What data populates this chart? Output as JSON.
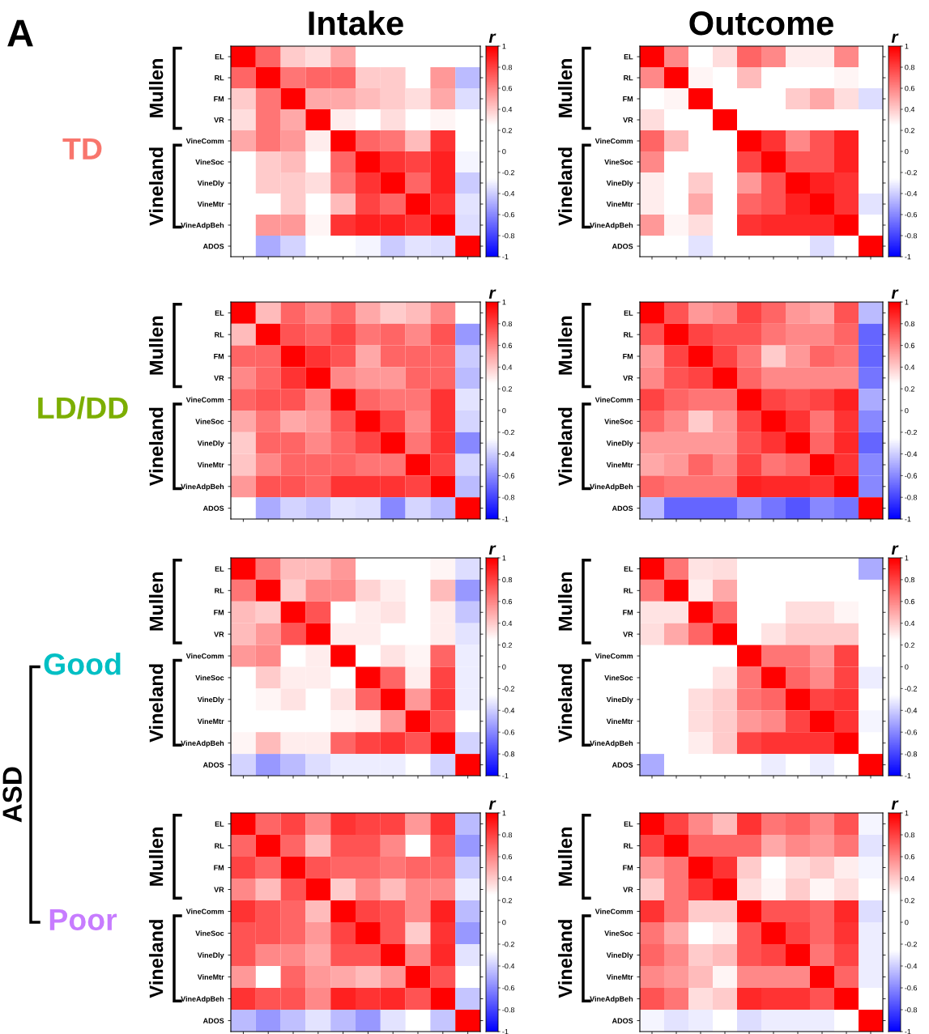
{
  "chart_data": [
    {
      "type": "heatmap",
      "title": "Intake",
      "categories": [
        null,
        null,
        null,
        null,
        null,
        null,
        null,
        null,
        null,
        null
      ],
      "y_categories": [
        "EL",
        "RL",
        "FM",
        "VR",
        "VineComm",
        "VineSoc",
        "VineDly",
        "VineMtr",
        "VineAdpBeh",
        "ADOS"
      ],
      "cells": [
        [
          1,
          0.7,
          0.4,
          0.35,
          0.5,
          null,
          null,
          null,
          null,
          null
        ],
        [
          0.7,
          1,
          0.65,
          0.7,
          0.7,
          0.4,
          0.4,
          null,
          0.55,
          -0.45
        ],
        [
          0.4,
          0.65,
          1,
          0.5,
          0.5,
          0.45,
          0.4,
          0.35,
          0.5,
          -0.35
        ],
        [
          0.35,
          0.65,
          0.5,
          1,
          0.3,
          null,
          0.35,
          null,
          0.28,
          null
        ],
        [
          0.5,
          0.65,
          0.55,
          0.3,
          1,
          0.7,
          0.65,
          0.45,
          0.85,
          null
        ],
        [
          null,
          0.4,
          0.45,
          null,
          0.7,
          1,
          0.85,
          0.8,
          0.9,
          -0.28
        ],
        [
          null,
          0.4,
          0.4,
          0.35,
          0.65,
          0.85,
          1,
          0.7,
          0.9,
          -0.4
        ],
        [
          null,
          null,
          0.4,
          null,
          0.45,
          0.8,
          0.7,
          1,
          0.85,
          -0.33
        ],
        [
          null,
          0.55,
          0.55,
          0.28,
          0.85,
          0.9,
          0.9,
          0.85,
          1,
          -0.35
        ],
        [
          null,
          -0.5,
          -0.38,
          null,
          null,
          -0.28,
          -0.4,
          -0.33,
          -0.35,
          1
        ]
      ],
      "clim": [
        -1,
        1
      ],
      "cticks": [
        1,
        0.8,
        0.6,
        0.4,
        0.2,
        0,
        -0.2,
        -0.4,
        -0.6,
        -0.8,
        -1
      ],
      "clabel": "r",
      "tick_labels": "y",
      "annotations": [
        "Mullen",
        "Vineland",
        "TD",
        "A"
      ]
    },
    {
      "type": "heatmap",
      "title": "Outcome",
      "categories": [
        null,
        null,
        null,
        null,
        null,
        null,
        null,
        null,
        null,
        null
      ],
      "y_categories": [
        "EL",
        "RL",
        "FM",
        "VR",
        "VineComm",
        "VineSoc",
        "VineDly",
        "VineMtr",
        "VineAdpBeh",
        "ADOS"
      ],
      "cells": [
        [
          1,
          0.6,
          null,
          0.35,
          0.7,
          0.6,
          0.3,
          0.3,
          0.6,
          null
        ],
        [
          0.6,
          1,
          0.28,
          null,
          0.45,
          null,
          null,
          null,
          0.28,
          null
        ],
        [
          null,
          0.28,
          1,
          null,
          null,
          null,
          0.4,
          0.5,
          0.35,
          -0.35
        ],
        [
          0.35,
          null,
          null,
          1,
          null,
          null,
          null,
          null,
          null,
          null
        ],
        [
          0.7,
          0.45,
          null,
          null,
          1,
          0.85,
          0.6,
          0.75,
          0.9,
          null
        ],
        [
          0.6,
          null,
          null,
          null,
          0.8,
          1,
          0.75,
          0.75,
          0.9,
          null
        ],
        [
          0.3,
          null,
          0.4,
          null,
          0.55,
          0.75,
          1,
          0.9,
          0.85,
          null
        ],
        [
          0.3,
          null,
          0.5,
          null,
          0.7,
          0.75,
          0.9,
          1,
          0.85,
          -0.33
        ],
        [
          0.55,
          0.28,
          0.35,
          null,
          0.85,
          0.88,
          0.88,
          0.88,
          1,
          null
        ],
        [
          null,
          null,
          -0.33,
          null,
          null,
          null,
          null,
          -0.35,
          null,
          1
        ]
      ],
      "clim": [
        -1,
        1
      ],
      "cticks": [
        1,
        0.8,
        0.6,
        0.4,
        0.2,
        0,
        -0.2,
        -0.4,
        -0.6,
        -0.8,
        -1
      ],
      "clabel": "r",
      "tick_labels": "y",
      "annotations": [
        "Mullen",
        "Vineland"
      ]
    },
    {
      "type": "heatmap",
      "categories": [
        null,
        null,
        null,
        null,
        null,
        null,
        null,
        null,
        null,
        null
      ],
      "y_categories": [
        "EL",
        "RL",
        "FM",
        "VR",
        "VineComm",
        "VineSoc",
        "VineDly",
        "VineMtr",
        "VineAdpBeh",
        "ADOS"
      ],
      "cells": [
        [
          1,
          0.45,
          0.7,
          0.6,
          0.7,
          0.5,
          0.4,
          0.45,
          0.6,
          null
        ],
        [
          0.45,
          1,
          0.75,
          0.7,
          0.8,
          0.65,
          0.7,
          0.6,
          0.75,
          -0.55
        ],
        [
          0.7,
          0.7,
          1,
          0.85,
          0.75,
          0.5,
          0.7,
          0.7,
          0.7,
          -0.4
        ],
        [
          0.6,
          0.7,
          0.85,
          1,
          0.6,
          0.55,
          0.55,
          0.7,
          0.7,
          -0.45
        ],
        [
          0.7,
          0.75,
          0.75,
          0.6,
          1,
          0.7,
          0.65,
          0.65,
          0.85,
          -0.33
        ],
        [
          0.5,
          0.65,
          0.5,
          0.55,
          0.75,
          1,
          0.8,
          0.6,
          0.85,
          -0.37
        ],
        [
          0.4,
          0.7,
          0.7,
          0.6,
          0.7,
          0.8,
          1,
          0.65,
          0.85,
          -0.6
        ],
        [
          0.42,
          0.6,
          0.7,
          0.7,
          0.7,
          0.65,
          0.65,
          1,
          0.8,
          -0.37
        ],
        [
          0.55,
          0.75,
          0.75,
          0.7,
          0.85,
          0.85,
          0.85,
          0.8,
          1,
          -0.45
        ],
        [
          null,
          -0.5,
          -0.38,
          -0.42,
          -0.33,
          -0.35,
          -0.6,
          -0.37,
          -0.45,
          1
        ]
      ],
      "clim": [
        -1,
        1
      ],
      "cticks": [
        1,
        0.8,
        0.6,
        0.4,
        0.2,
        0,
        -0.2,
        -0.4,
        -0.6,
        -0.8,
        -1
      ],
      "clabel": "r",
      "tick_labels": "y",
      "annotations": [
        "Mullen",
        "Vineland",
        "LD/DD"
      ]
    },
    {
      "type": "heatmap",
      "categories": [
        null,
        null,
        null,
        null,
        null,
        null,
        null,
        null,
        null,
        null
      ],
      "y_categories": [
        "EL",
        "RL",
        "FM",
        "VR",
        "VineComm",
        "VineSoc",
        "VineDly",
        "VineMtr",
        "VineAdpBeh",
        "ADOS"
      ],
      "cells": [
        [
          1,
          0.75,
          0.55,
          0.6,
          0.8,
          0.7,
          0.55,
          0.5,
          0.75,
          -0.45
        ],
        [
          0.75,
          1,
          0.8,
          0.75,
          0.75,
          0.65,
          0.6,
          0.6,
          0.7,
          -0.7
        ],
        [
          0.55,
          0.8,
          1,
          0.8,
          0.65,
          0.4,
          0.55,
          0.7,
          0.65,
          -0.7
        ],
        [
          0.6,
          0.75,
          0.8,
          1,
          0.7,
          0.6,
          0.6,
          0.6,
          0.6,
          -0.65
        ],
        [
          0.8,
          0.7,
          0.65,
          0.65,
          1,
          0.8,
          0.75,
          0.8,
          0.9,
          -0.5
        ],
        [
          0.7,
          0.6,
          0.4,
          0.55,
          0.8,
          1,
          0.85,
          0.65,
          0.85,
          -0.6
        ],
        [
          0.55,
          0.55,
          0.55,
          0.55,
          0.75,
          0.85,
          1,
          0.7,
          0.88,
          -0.7
        ],
        [
          0.5,
          0.55,
          0.7,
          0.6,
          0.8,
          0.65,
          0.7,
          1,
          0.85,
          -0.6
        ],
        [
          0.7,
          0.65,
          0.65,
          0.65,
          0.9,
          0.88,
          0.88,
          0.85,
          1,
          -0.6
        ],
        [
          -0.45,
          -0.7,
          -0.7,
          -0.7,
          -0.55,
          -0.65,
          -0.75,
          -0.6,
          -0.65,
          1
        ]
      ],
      "clim": [
        -1,
        1
      ],
      "cticks": [
        1,
        0.8,
        0.6,
        0.4,
        0.2,
        0,
        -0.2,
        -0.4,
        -0.6,
        -0.8,
        -1
      ],
      "clabel": "r",
      "tick_labels": "y",
      "annotations": [
        "Mullen",
        "Vineland"
      ]
    },
    {
      "type": "heatmap",
      "categories": [
        null,
        null,
        null,
        null,
        null,
        null,
        null,
        null,
        null,
        null
      ],
      "y_categories": [
        "EL",
        "RL",
        "FM",
        "VR",
        "VineComm",
        "VineSoc",
        "VineDly",
        "VineMtr",
        "VineAdpBeh",
        "ADOS"
      ],
      "cells": [
        [
          1,
          0.65,
          0.45,
          0.45,
          0.55,
          null,
          null,
          null,
          0.28,
          -0.35
        ],
        [
          0.65,
          1,
          0.4,
          0.6,
          0.6,
          0.38,
          0.3,
          null,
          0.45,
          -0.55
        ],
        [
          0.45,
          0.4,
          1,
          0.75,
          null,
          0.3,
          0.33,
          null,
          0.3,
          -0.42
        ],
        [
          0.45,
          0.55,
          0.75,
          1,
          0.3,
          0.3,
          null,
          null,
          0.3,
          -0.33
        ],
        [
          0.55,
          0.6,
          null,
          0.3,
          1,
          null,
          0.33,
          0.28,
          0.7,
          -0.3
        ],
        [
          null,
          0.4,
          0.3,
          0.3,
          null,
          1,
          0.7,
          0.3,
          0.8,
          -0.3
        ],
        [
          null,
          0.28,
          0.33,
          null,
          0.33,
          0.7,
          1,
          0.55,
          0.85,
          -0.3
        ],
        [
          null,
          null,
          null,
          null,
          0.28,
          0.3,
          0.55,
          1,
          0.75,
          null
        ],
        [
          0.28,
          0.45,
          0.3,
          0.3,
          0.7,
          0.8,
          0.85,
          0.75,
          1,
          -0.38
        ],
        [
          -0.38,
          -0.55,
          -0.45,
          -0.35,
          -0.3,
          -0.3,
          -0.3,
          null,
          -0.38,
          1
        ]
      ],
      "clim": [
        -1,
        1
      ],
      "cticks": [
        1,
        0.8,
        0.6,
        0.4,
        0.2,
        0,
        -0.2,
        -0.4,
        -0.6,
        -0.8,
        -1
      ],
      "clabel": "r",
      "tick_labels": "y",
      "annotations": [
        "Mullen",
        "Vineland",
        "Good",
        "ASD"
      ]
    },
    {
      "type": "heatmap",
      "categories": [
        null,
        null,
        null,
        null,
        null,
        null,
        null,
        null,
        null,
        null
      ],
      "y_categories": [
        "EL",
        "RL",
        "FM",
        "VR",
        "VineComm",
        "VineSoc",
        "VineDly",
        "VineMtr",
        "VineAdpBeh",
        "ADOS"
      ],
      "cells": [
        [
          1,
          0.65,
          0.33,
          0.35,
          null,
          null,
          null,
          null,
          null,
          -0.5
        ],
        [
          0.65,
          1,
          0.3,
          0.5,
          null,
          null,
          null,
          null,
          null,
          null
        ],
        [
          0.33,
          0.33,
          1,
          0.7,
          null,
          null,
          0.35,
          0.35,
          0.28,
          null
        ],
        [
          0.35,
          0.5,
          0.7,
          1,
          null,
          0.33,
          0.4,
          0.4,
          0.4,
          null
        ],
        [
          null,
          null,
          null,
          null,
          1,
          0.65,
          0.65,
          0.55,
          0.8,
          null
        ],
        [
          null,
          null,
          null,
          0.33,
          0.65,
          1,
          0.7,
          0.6,
          0.8,
          -0.3
        ],
        [
          null,
          null,
          0.35,
          0.4,
          0.65,
          0.7,
          1,
          0.8,
          0.85,
          null
        ],
        [
          null,
          null,
          0.35,
          0.4,
          0.55,
          0.6,
          0.8,
          1,
          0.85,
          -0.28
        ],
        [
          null,
          null,
          0.3,
          0.4,
          0.8,
          0.85,
          0.85,
          0.85,
          1,
          null
        ],
        [
          -0.5,
          null,
          null,
          null,
          null,
          -0.3,
          null,
          -0.3,
          null,
          1
        ]
      ],
      "clim": [
        -1,
        1
      ],
      "cticks": [
        1,
        0.8,
        0.6,
        0.4,
        0.2,
        0,
        -0.2,
        -0.4,
        -0.6,
        -0.8,
        -1
      ],
      "clabel": "r",
      "tick_labels": "y",
      "annotations": [
        "Mullen",
        "Vineland"
      ]
    },
    {
      "type": "heatmap",
      "categories": [
        null,
        null,
        null,
        null,
        null,
        null,
        null,
        null,
        null,
        null
      ],
      "y_categories": [
        "EL",
        "RL",
        "FM",
        "VR",
        "VineComm",
        "VineSoc",
        "VineDly",
        "VineMtr",
        "VineAdpBeh",
        "ADOS"
      ],
      "cells": [
        [
          1,
          0.7,
          0.8,
          0.6,
          0.85,
          0.8,
          0.8,
          0.55,
          0.85,
          -0.45
        ],
        [
          0.7,
          1,
          0.7,
          0.45,
          0.75,
          0.75,
          0.6,
          null,
          0.75,
          -0.55
        ],
        [
          0.8,
          0.7,
          1,
          0.75,
          0.7,
          0.7,
          0.65,
          0.7,
          0.7,
          -0.4
        ],
        [
          0.6,
          0.45,
          0.75,
          1,
          0.4,
          0.6,
          0.45,
          0.6,
          0.6,
          -0.3
        ],
        [
          0.85,
          0.75,
          0.7,
          0.45,
          1,
          0.8,
          0.75,
          0.6,
          0.9,
          -0.45
        ],
        [
          0.75,
          0.75,
          0.7,
          0.55,
          0.8,
          1,
          0.75,
          0.4,
          0.85,
          -0.55
        ],
        [
          0.75,
          0.6,
          0.6,
          0.5,
          0.75,
          0.75,
          1,
          0.6,
          0.88,
          -0.33
        ],
        [
          0.55,
          null,
          0.7,
          0.55,
          0.5,
          0.45,
          0.55,
          1,
          0.75,
          null
        ],
        [
          0.85,
          0.75,
          0.75,
          0.6,
          0.9,
          0.85,
          0.88,
          0.75,
          1,
          -0.42
        ],
        [
          -0.45,
          -0.55,
          -0.43,
          -0.33,
          -0.45,
          -0.55,
          -0.33,
          null,
          -0.42,
          1
        ]
      ],
      "clim": [
        -1,
        1
      ],
      "cticks": [
        1,
        0.8,
        0.6,
        0.4,
        0.2,
        0,
        -0.2,
        -0.4,
        -0.6,
        -0.8,
        -1
      ],
      "clabel": "r",
      "tick_labels": "y",
      "annotations": [
        "Mullen",
        "Vineland",
        "Poor"
      ]
    },
    {
      "type": "heatmap",
      "categories": [
        null,
        null,
        null,
        null,
        null,
        null,
        null,
        null,
        null,
        null
      ],
      "y_categories": [
        "EL",
        "RL",
        "FM",
        "VR",
        "VineComm",
        "VineSoc",
        "VineDly",
        "VineMtr",
        "VineAdpBeh",
        "ADOS"
      ],
      "cells": [
        [
          1,
          0.8,
          0.6,
          0.45,
          0.85,
          0.65,
          0.7,
          0.6,
          0.75,
          -0.28
        ],
        [
          0.8,
          1,
          0.7,
          0.7,
          0.7,
          0.5,
          0.6,
          0.55,
          0.65,
          -0.33
        ],
        [
          0.55,
          0.65,
          1,
          0.85,
          0.4,
          null,
          0.35,
          0.4,
          0.3,
          -0.28
        ],
        [
          0.4,
          0.65,
          0.85,
          1,
          0.35,
          0.28,
          0.4,
          0.28,
          0.35,
          null
        ],
        [
          0.85,
          0.65,
          0.4,
          0.4,
          1,
          0.75,
          0.75,
          0.7,
          0.88,
          -0.35
        ],
        [
          0.65,
          0.5,
          null,
          0.3,
          0.75,
          1,
          0.8,
          0.7,
          0.85,
          -0.3
        ],
        [
          0.7,
          0.6,
          0.4,
          0.45,
          0.75,
          0.8,
          1,
          0.65,
          0.8,
          -0.3
        ],
        [
          0.6,
          0.55,
          0.45,
          0.28,
          0.6,
          0.6,
          0.6,
          1,
          0.7,
          -0.3
        ],
        [
          0.75,
          0.65,
          0.35,
          0.4,
          0.88,
          0.85,
          0.85,
          0.75,
          1,
          null
        ],
        [
          -0.28,
          -0.33,
          -0.3,
          null,
          -0.35,
          -0.3,
          -0.3,
          -0.3,
          null,
          1
        ]
      ],
      "clim": [
        -1,
        1
      ],
      "cticks": [
        1,
        0.8,
        0.6,
        0.4,
        0.2,
        0,
        -0.2,
        -0.4,
        -0.6,
        -0.8,
        -1
      ],
      "clabel": "r",
      "tick_labels": "y",
      "annotations": [
        "Mullen",
        "Vineland"
      ]
    }
  ]
}
